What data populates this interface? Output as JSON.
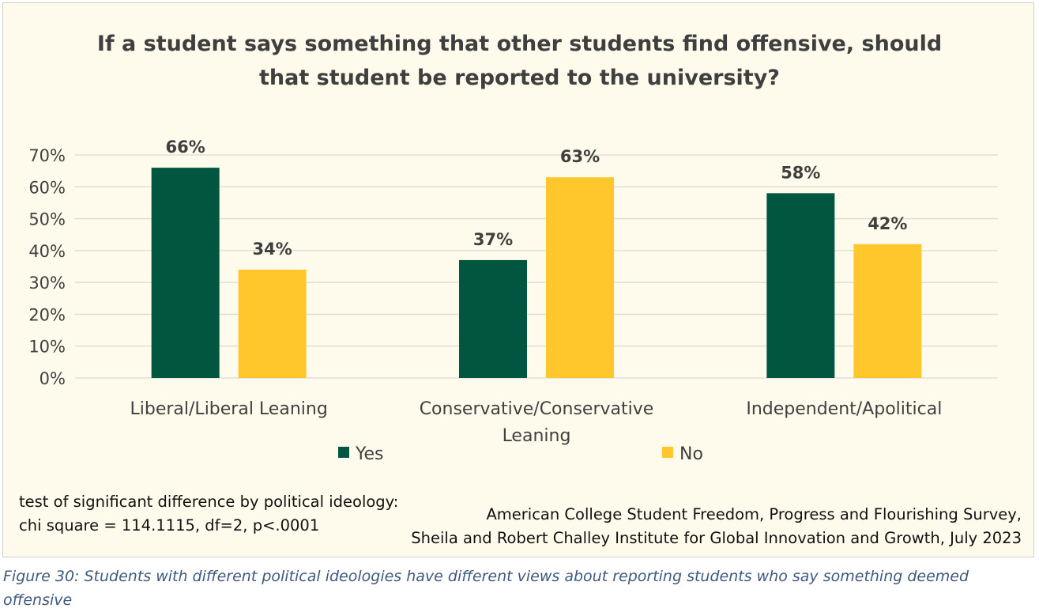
{
  "chart_data": {
    "type": "bar",
    "title": "If a student says something that other students find offensive, should that student be reported to the university?",
    "categories": [
      "Liberal/Liberal Leaning",
      "Conservative/Conservative Leaning",
      "Independent/Apolitical"
    ],
    "category_lines": [
      [
        "Liberal/Liberal Leaning"
      ],
      [
        "Conservative/Conservative",
        "Leaning"
      ],
      [
        "Independent/Apolitical"
      ]
    ],
    "series": [
      {
        "name": "Yes",
        "values": [
          66,
          37,
          58
        ],
        "labels": [
          "66%",
          "37%",
          "58%"
        ],
        "color": "#00563F"
      },
      {
        "name": "No",
        "values": [
          34,
          63,
          42
        ],
        "labels": [
          "34%",
          "63%",
          "42%"
        ],
        "color": "#FFC72C"
      }
    ],
    "ylim": [
      0,
      70
    ],
    "yticks": [
      0,
      10,
      20,
      30,
      40,
      50,
      60,
      70
    ],
    "ytick_labels": [
      "0%",
      "10%",
      "20%",
      "30%",
      "40%",
      "50%",
      "60%",
      "70%"
    ],
    "xlabel": "",
    "ylabel": "",
    "grid": true,
    "legend_position": "bottom"
  },
  "notes": {
    "stats_line1": "test of significant difference by political ideology:",
    "stats_line2": "chi square = 114.1115, df=2, p<.0001",
    "source_line1": "American College Student Freedom, Progress and Flourishing Survey,",
    "source_line2": "Sheila and Robert Challey Institute for Global Innovation and Growth, July 2023"
  },
  "caption": "Figure 30: Students with different political ideologies have different views about reporting students who say something deemed offensive",
  "colors": {
    "background": "#FEFAEC",
    "gridline": "#D9D9D9",
    "yes": "#00563F",
    "no": "#FFC72C",
    "text": "#3F3F3F",
    "caption": "#3E5A7E"
  }
}
